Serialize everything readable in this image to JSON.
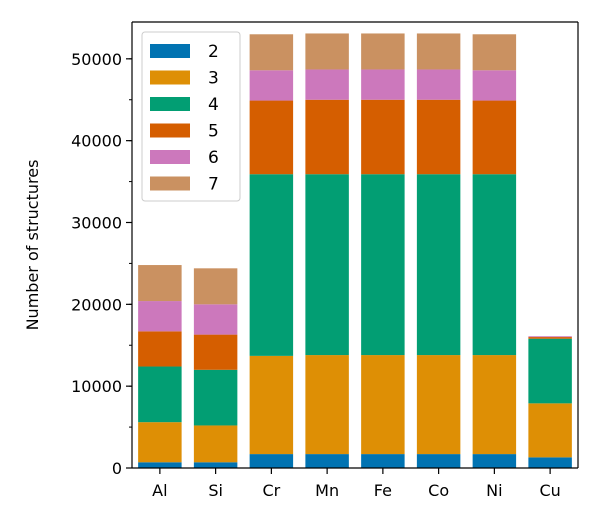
{
  "chart_data": {
    "type": "bar",
    "stacked": true,
    "categories": [
      "Al",
      "Si",
      "Cr",
      "Mn",
      "Fe",
      "Co",
      "Ni",
      "Cu"
    ],
    "series": [
      {
        "name": "2",
        "color": "#0173b2",
        "values": [
          700,
          700,
          1700,
          1700,
          1700,
          1700,
          1700,
          1300
        ]
      },
      {
        "name": "3",
        "color": "#de8f05",
        "values": [
          4900,
          4500,
          12000,
          12100,
          12100,
          12100,
          12100,
          6600
        ]
      },
      {
        "name": "4",
        "color": "#029e73",
        "values": [
          6800,
          6800,
          22200,
          22100,
          22100,
          22100,
          22100,
          7900
        ]
      },
      {
        "name": "5",
        "color": "#d55e00",
        "values": [
          4300,
          4300,
          9000,
          9100,
          9100,
          9100,
          9000,
          200
        ]
      },
      {
        "name": "6",
        "color": "#cc78bc",
        "values": [
          3700,
          3700,
          3700,
          3700,
          3700,
          3700,
          3700,
          100
        ]
      },
      {
        "name": "7",
        "color": "#ca9161",
        "values": [
          4400,
          4400,
          4400,
          4400,
          4400,
          4400,
          4400,
          0
        ]
      }
    ],
    "ylabel": "Number of structures",
    "xlabel": "",
    "ylim": [
      0,
      54500
    ],
    "yticks": [
      0,
      10000,
      20000,
      30000,
      40000,
      50000
    ],
    "ytick_labels": [
      "0",
      "10000",
      "20000",
      "30000",
      "40000",
      "50000"
    ],
    "minor_ytick_step": 5000,
    "grid": false,
    "legend_position": "upper-left"
  }
}
